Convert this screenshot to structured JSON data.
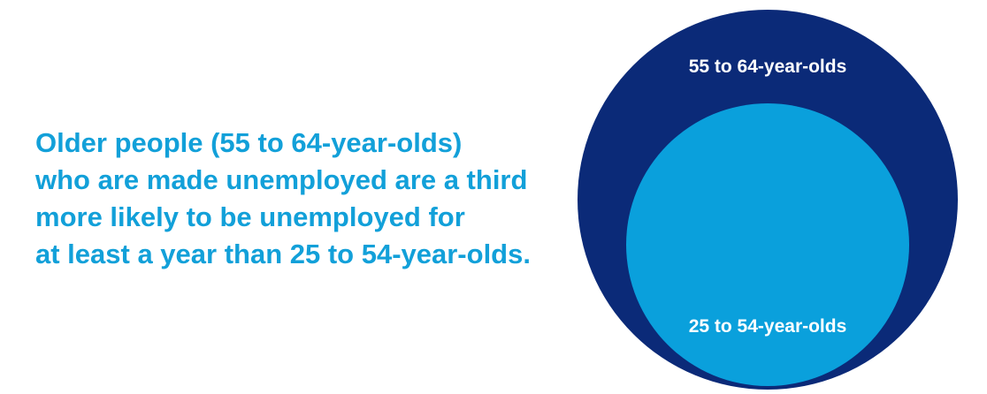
{
  "headline": {
    "lines": [
      "Older people (55 to 64-year-olds)",
      "who are made unemployed are a third",
      "more likely to be unemployed for",
      "at least a year than 25 to 54-year-olds."
    ]
  },
  "circles": [
    {
      "label": "55 to 64-year-olds"
    },
    {
      "label": "25 to 54-year-olds"
    }
  ]
}
